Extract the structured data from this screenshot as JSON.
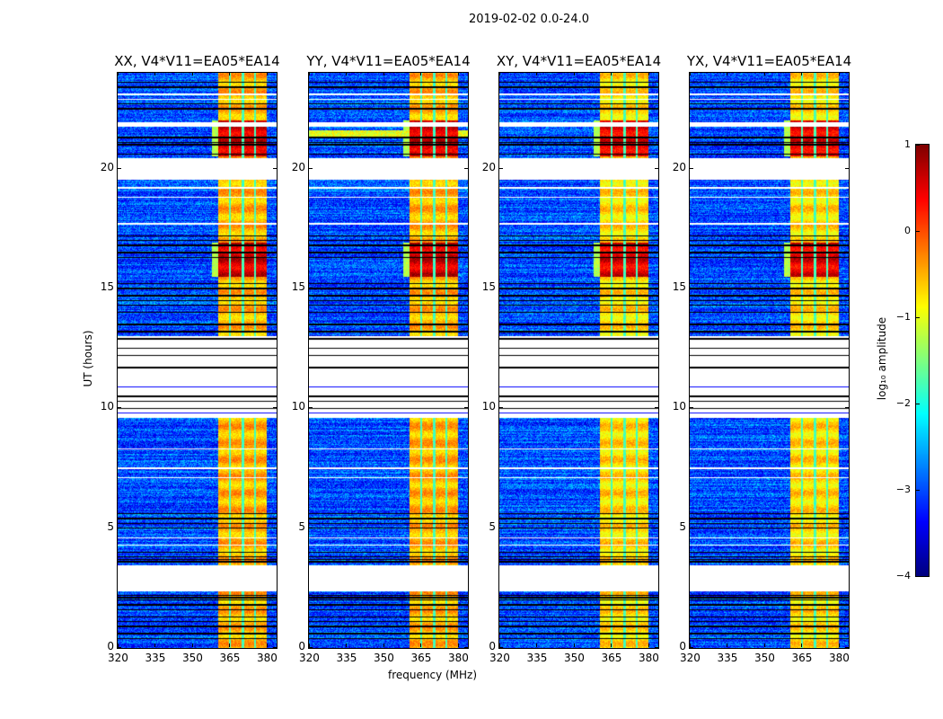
{
  "suptitle": "2019-02-02 0.0-24.0",
  "chart_data": {
    "type": "heatmap",
    "xlabel": "frequency (MHz)",
    "ylabel": "UT (hours)",
    "xlim": [
      320,
      384
    ],
    "ylim": [
      0,
      24
    ],
    "xticks": [
      "320",
      "335",
      "350",
      "365",
      "380"
    ],
    "yticks": [
      "0",
      "5",
      "10",
      "15",
      "20"
    ],
    "panels": [
      {
        "title": "XX, V4*V11=EA05*EA14",
        "band_level": -0.5,
        "peak_level": 0.6
      },
      {
        "title": "YY, V4*V11=EA05*EA14",
        "band_level": -0.5,
        "peak_level": 0.6
      },
      {
        "title": "XY, V4*V11=EA05*EA14",
        "band_level": -0.7,
        "peak_level": 0.5
      },
      {
        "title": "YX, V4*V11=EA05*EA14",
        "band_level": -0.7,
        "peak_level": 0.5
      }
    ],
    "background_level": -3.0,
    "rfi_band_mhz": [
      360.5,
      380
    ],
    "channel_edges_mhz": [
      365.2,
      370.5,
      375.3
    ],
    "peak_intervals_hr": [
      [
        20.5,
        22.0
      ],
      [
        15.5,
        16.9
      ]
    ],
    "flagged_gaps_hr": [
      [
        2.35,
        3.45
      ],
      [
        9.6,
        13.0
      ],
      [
        19.55,
        20.45
      ],
      [
        21.75,
        21.95
      ]
    ],
    "colorbar": {
      "label": "log₁₀ amplitude",
      "range": [
        -4,
        1
      ],
      "ticks": [
        "1",
        "0",
        "−1",
        "−2",
        "−3",
        "−4"
      ],
      "colormap": "jet"
    }
  }
}
